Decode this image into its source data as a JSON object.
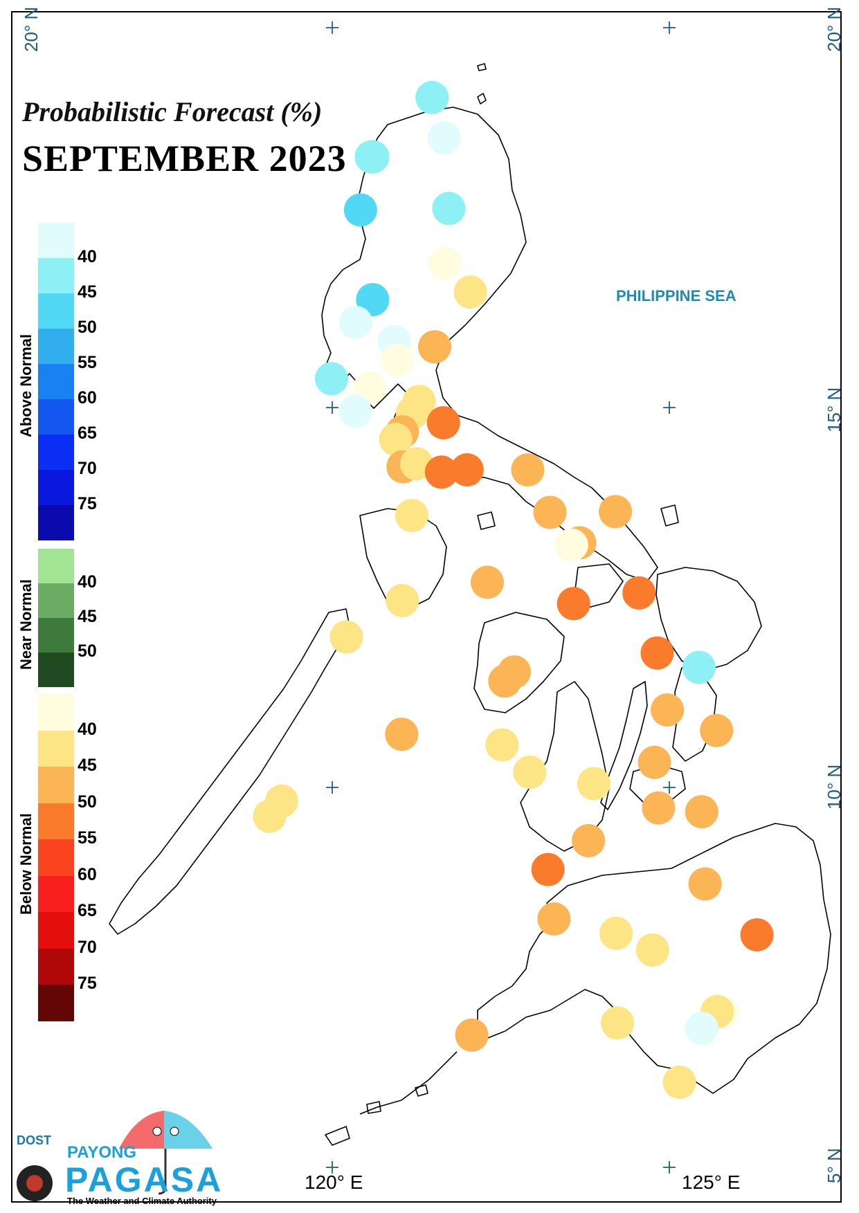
{
  "title": "Probabilistic Forecast (%)",
  "subtitle": "SEPTEMBER 2023",
  "sea_label": "PHILIPPINE SEA",
  "lat_labels": {
    "top_left": "20° N",
    "top_right": "20° N",
    "mid_15": "15° N",
    "mid_10": "10° N",
    "bottom_5": "5° N"
  },
  "lon_labels": {
    "lon_120": "120° E",
    "lon_125": "125° E"
  },
  "legend": {
    "above": {
      "label": "Above Normal",
      "ticks": [
        "40",
        "45",
        "50",
        "55",
        "60",
        "65",
        "70",
        "75"
      ],
      "colors": [
        "#e0fcfc",
        "#8cf0f4",
        "#50d8f4",
        "#30aeee",
        "#1a82f0",
        "#1456f0",
        "#0a2ef4",
        "#0a18de",
        "#0a0aae"
      ]
    },
    "near": {
      "label": "Near Normal",
      "ticks": [
        "40",
        "45",
        "50"
      ],
      "colors": [
        "#a0e494",
        "#6aac64",
        "#3e7a3c",
        "#204a20"
      ]
    },
    "below": {
      "label": "Below Normal",
      "ticks": [
        "40",
        "45",
        "50",
        "55",
        "60",
        "65",
        "70",
        "75"
      ],
      "colors": [
        "#fffce0",
        "#fde485",
        "#fbb554",
        "#fb7b2c",
        "#fa4420",
        "#f81e1e",
        "#e40e0e",
        "#b00808",
        "#640606"
      ]
    }
  },
  "logo": {
    "dost": "DOST",
    "payong": "PAYONG",
    "pagasa": "PAGASA",
    "tagline": "The Weather and Climate Authority"
  },
  "stations": [
    {
      "lat": 19.08,
      "lon": 121.48,
      "category": "above",
      "color": "#8cf0f4"
    },
    {
      "lat": 18.55,
      "lon": 121.66,
      "category": "above",
      "color": "#e0fcfc"
    },
    {
      "lat": 18.3,
      "lon": 120.6,
      "category": "above",
      "color": "#8cf0f4"
    },
    {
      "lat": 18.3,
      "lon": 120.58,
      "category": "above",
      "color": "#8cf0f4"
    },
    {
      "lat": 17.6,
      "lon": 120.42,
      "category": "above",
      "color": "#50d8f4"
    },
    {
      "lat": 17.62,
      "lon": 121.73,
      "category": "above",
      "color": "#8cf0f4"
    },
    {
      "lat": 16.9,
      "lon": 121.67,
      "category": "below",
      "color": "#fffce0"
    },
    {
      "lat": 16.42,
      "lon": 120.6,
      "category": "above",
      "color": "#50d8f4"
    },
    {
      "lat": 16.52,
      "lon": 122.05,
      "category": "below",
      "color": "#fde485"
    },
    {
      "lat": 16.12,
      "lon": 120.35,
      "category": "above",
      "color": "#e0fcfc"
    },
    {
      "lat": 15.87,
      "lon": 120.92,
      "category": "above",
      "color": "#e0fcfc"
    },
    {
      "lat": 15.8,
      "lon": 121.52,
      "category": "below",
      "color": "#fbb554"
    },
    {
      "lat": 15.62,
      "lon": 120.96,
      "category": "below",
      "color": "#fffce0"
    },
    {
      "lat": 15.38,
      "lon": 119.99,
      "category": "above",
      "color": "#8cf0f4"
    },
    {
      "lat": 15.26,
      "lon": 120.56,
      "category": "below",
      "color": "#fffce0"
    },
    {
      "lat": 15.08,
      "lon": 121.29,
      "category": "below",
      "color": "#fde485"
    },
    {
      "lat": 14.95,
      "lon": 120.34,
      "category": "above",
      "color": "#e0fcfc"
    },
    {
      "lat": 14.93,
      "lon": 121.19,
      "category": "below",
      "color": "#fde485"
    },
    {
      "lat": 14.8,
      "lon": 121.65,
      "category": "below",
      "color": "#fb7b2c"
    },
    {
      "lat": 14.68,
      "lon": 121.04,
      "category": "below",
      "color": "#fbb554"
    },
    {
      "lat": 14.58,
      "lon": 120.94,
      "category": "below",
      "color": "#fde485"
    },
    {
      "lat": 14.22,
      "lon": 121.05,
      "category": "below",
      "color": "#fbb554"
    },
    {
      "lat": 14.26,
      "lon": 121.25,
      "category": "below",
      "color": "#fde485"
    },
    {
      "lat": 14.15,
      "lon": 121.62,
      "category": "below",
      "color": "#fb7b2c"
    },
    {
      "lat": 14.18,
      "lon": 122.0,
      "category": "below",
      "color": "#fb7b2c"
    },
    {
      "lat": 14.18,
      "lon": 122.9,
      "category": "below",
      "color": "#fbb554"
    },
    {
      "lat": 13.62,
      "lon": 123.23,
      "category": "below",
      "color": "#fbb554"
    },
    {
      "lat": 13.63,
      "lon": 124.2,
      "category": "below",
      "color": "#fbb554"
    },
    {
      "lat": 13.58,
      "lon": 121.18,
      "category": "below",
      "color": "#fde485"
    },
    {
      "lat": 13.22,
      "lon": 123.67,
      "category": "below",
      "color": "#fbb554"
    },
    {
      "lat": 13.19,
      "lon": 123.55,
      "category": "below",
      "color": "#fffce0"
    },
    {
      "lat": 12.7,
      "lon": 122.3,
      "category": "below",
      "color": "#fbb554"
    },
    {
      "lat": 12.56,
      "lon": 124.55,
      "category": "below",
      "color": "#fb7b2c"
    },
    {
      "lat": 12.42,
      "lon": 123.58,
      "category": "below",
      "color": "#fb7b2c"
    },
    {
      "lat": 12.46,
      "lon": 121.04,
      "category": "below",
      "color": "#fde485"
    },
    {
      "lat": 11.98,
      "lon": 120.21,
      "category": "below",
      "color": "#fde485"
    },
    {
      "lat": 11.77,
      "lon": 124.82,
      "category": "below",
      "color": "#fb7b2c"
    },
    {
      "lat": 11.58,
      "lon": 125.44,
      "category": "above",
      "color": "#8cf0f4"
    },
    {
      "lat": 11.52,
      "lon": 122.7,
      "category": "below",
      "color": "#fbb554"
    },
    {
      "lat": 11.4,
      "lon": 122.56,
      "category": "below",
      "color": "#fbb554"
    },
    {
      "lat": 11.02,
      "lon": 124.97,
      "category": "below",
      "color": "#fbb554"
    },
    {
      "lat": 10.75,
      "lon": 125.7,
      "category": "below",
      "color": "#fbb554"
    },
    {
      "lat": 10.7,
      "lon": 121.03,
      "category": "below",
      "color": "#fbb554"
    },
    {
      "lat": 10.56,
      "lon": 122.52,
      "category": "below",
      "color": "#fde485"
    },
    {
      "lat": 10.33,
      "lon": 124.78,
      "category": "below",
      "color": "#fbb554"
    },
    {
      "lat": 10.2,
      "lon": 122.93,
      "category": "below",
      "color": "#fde485"
    },
    {
      "lat": 10.05,
      "lon": 123.88,
      "category": "below",
      "color": "#fde485"
    },
    {
      "lat": 9.73,
      "lon": 124.84,
      "category": "below",
      "color": "#fbb554"
    },
    {
      "lat": 9.82,
      "lon": 119.25,
      "category": "below",
      "color": "#fde485"
    },
    {
      "lat": 9.68,
      "lon": 125.48,
      "category": "below",
      "color": "#fbb554"
    },
    {
      "lat": 9.62,
      "lon": 119.07,
      "category": "below",
      "color": "#fde485"
    },
    {
      "lat": 9.3,
      "lon": 123.8,
      "category": "below",
      "color": "#fbb554"
    },
    {
      "lat": 8.92,
      "lon": 123.2,
      "category": "below",
      "color": "#fb7b2c"
    },
    {
      "lat": 8.73,
      "lon": 125.53,
      "category": "below",
      "color": "#fbb554"
    },
    {
      "lat": 8.27,
      "lon": 123.29,
      "category": "below",
      "color": "#fbb554"
    },
    {
      "lat": 8.08,
      "lon": 124.21,
      "category": "below",
      "color": "#fde485"
    },
    {
      "lat": 8.06,
      "lon": 126.3,
      "category": "below",
      "color": "#fb7b2c"
    },
    {
      "lat": 7.86,
      "lon": 124.75,
      "category": "below",
      "color": "#fde485"
    },
    {
      "lat": 7.04,
      "lon": 125.78,
      "category": "below",
      "color": "#fffce0"
    },
    {
      "lat": 7.05,
      "lon": 125.71,
      "category": "below",
      "color": "#fde485"
    },
    {
      "lat": 6.9,
      "lon": 124.23,
      "category": "below",
      "color": "#fde485"
    },
    {
      "lat": 6.83,
      "lon": 125.48,
      "category": "above",
      "color": "#e0fcfc"
    },
    {
      "lat": 6.74,
      "lon": 122.07,
      "category": "below",
      "color": "#fbb554"
    },
    {
      "lat": 6.12,
      "lon": 125.15,
      "category": "below",
      "color": "#fde485"
    }
  ]
}
